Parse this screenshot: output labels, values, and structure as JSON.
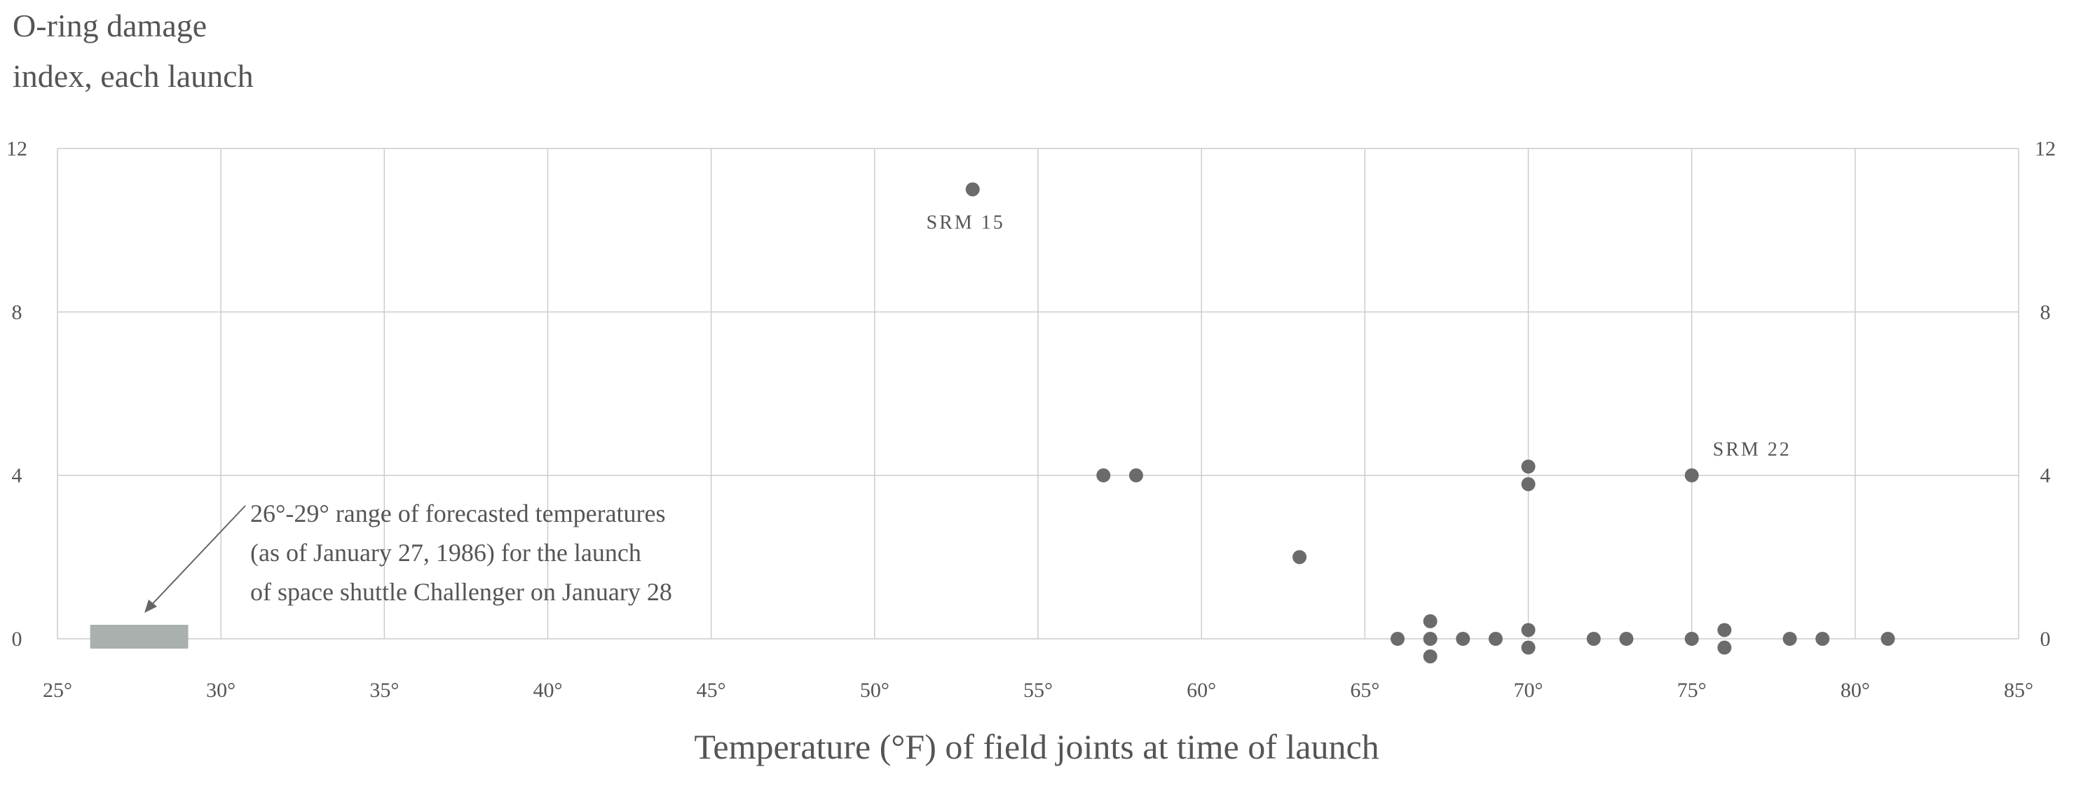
{
  "chart_data": {
    "type": "scatter",
    "title": "",
    "ylabel_lines": [
      "O-ring damage",
      "index, each launch"
    ],
    "xlabel": "Temperature (°F) of field joints at time of launch",
    "xlim": [
      25,
      85
    ],
    "ylim": [
      0,
      12
    ],
    "x_ticks": [
      25,
      30,
      35,
      40,
      45,
      50,
      55,
      60,
      65,
      70,
      75,
      80,
      85
    ],
    "x_tick_labels": [
      "25°",
      "30°",
      "35°",
      "40°",
      "45°",
      "50°",
      "55°",
      "60°",
      "65°",
      "70°",
      "75°",
      "80°",
      "85°"
    ],
    "y_ticks": [
      0,
      4,
      8,
      12
    ],
    "y_tick_labels": [
      "0",
      "4",
      "8",
      "12"
    ],
    "grid": true,
    "legend": "none",
    "point_color": "#6b6b6b",
    "series": [
      {
        "points": [
          {
            "x": 53,
            "y": 11
          },
          {
            "x": 57,
            "y": 4
          },
          {
            "x": 58,
            "y": 4
          },
          {
            "x": 63,
            "y": 2
          },
          {
            "x": 66,
            "y": 0
          },
          {
            "x": 67,
            "y": 0
          },
          {
            "x": 67,
            "y": 0
          },
          {
            "x": 67,
            "y": 0
          },
          {
            "x": 68,
            "y": 0
          },
          {
            "x": 69,
            "y": 0
          },
          {
            "x": 70,
            "y": 4
          },
          {
            "x": 70,
            "y": 4
          },
          {
            "x": 70,
            "y": 0
          },
          {
            "x": 70,
            "y": 0
          },
          {
            "x": 72,
            "y": 0
          },
          {
            "x": 73,
            "y": 0
          },
          {
            "x": 75,
            "y": 4
          },
          {
            "x": 75,
            "y": 0
          },
          {
            "x": 76,
            "y": 0
          },
          {
            "x": 76,
            "y": 0
          },
          {
            "x": 78,
            "y": 0
          },
          {
            "x": 79,
            "y": 0
          },
          {
            "x": 81,
            "y": 0
          }
        ]
      }
    ],
    "point_labels": [
      {
        "text": "SRM 15",
        "x": 53,
        "y": 11
      },
      {
        "text": "SRM 22",
        "x": 75,
        "y": 4
      }
    ],
    "forecast_range": {
      "x_from": 26,
      "x_to": 29,
      "color": "#a9b0ae",
      "annotation_lines": [
        "26°-29° range of forecasted temperatures",
        "(as of January 27, 1986) for the launch",
        "of space shuttle Challenger on January 28"
      ]
    }
  }
}
